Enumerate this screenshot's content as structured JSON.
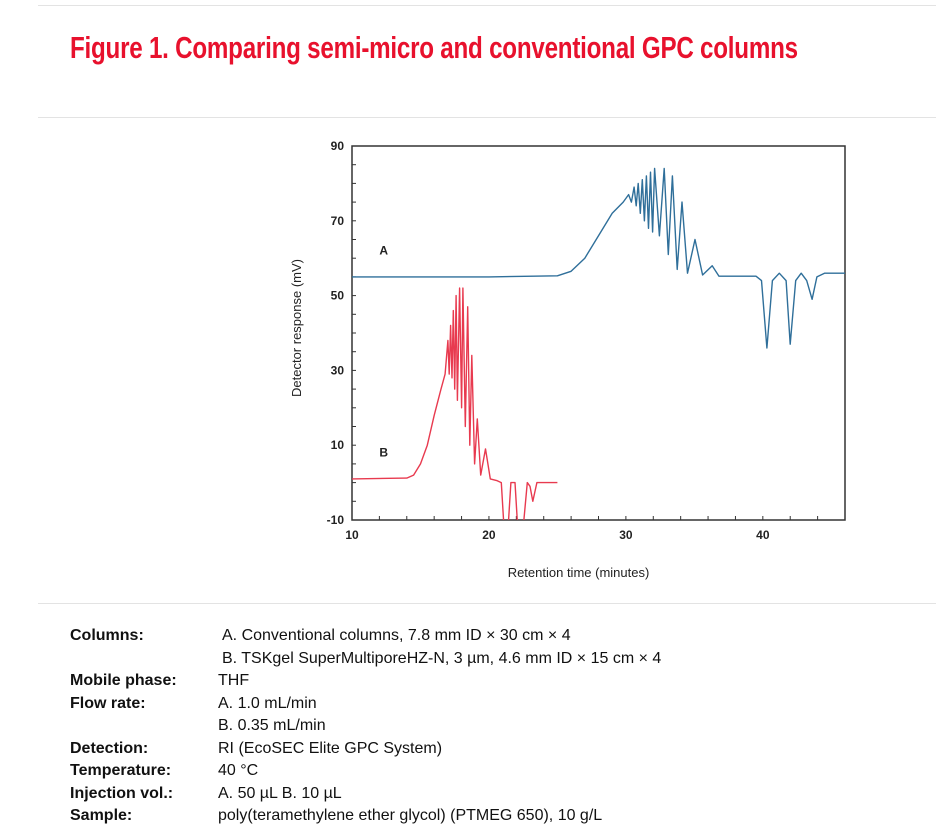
{
  "title": "Figure 1. Comparing semi-micro and conventional GPC columns",
  "chart_data": {
    "type": "line",
    "xlabel": "Retention time (minutes)",
    "ylabel": "Detector response (mV)",
    "xlim": [
      10,
      46
    ],
    "ylim": [
      -10,
      90
    ],
    "xticks": [
      10,
      20,
      30,
      40
    ],
    "yticks": [
      90,
      70,
      50,
      30,
      10,
      -10
    ],
    "grid": false,
    "series": [
      {
        "name": "A",
        "color": "#2f6f9a",
        "label_at": [
          12,
          61
        ],
        "points": [
          [
            10,
            55
          ],
          [
            20,
            55
          ],
          [
            25,
            55.3
          ],
          [
            26,
            56.5
          ],
          [
            27,
            60
          ],
          [
            28,
            66
          ],
          [
            29,
            72
          ],
          [
            29.8,
            75
          ],
          [
            30.2,
            77
          ],
          [
            30.4,
            75
          ],
          [
            30.6,
            79
          ],
          [
            30.75,
            74
          ],
          [
            30.9,
            80
          ],
          [
            31.05,
            72
          ],
          [
            31.2,
            81
          ],
          [
            31.35,
            70
          ],
          [
            31.5,
            82
          ],
          [
            31.65,
            68
          ],
          [
            31.8,
            83
          ],
          [
            31.95,
            67
          ],
          [
            32.1,
            84
          ],
          [
            32.45,
            66
          ],
          [
            32.8,
            84
          ],
          [
            33.1,
            61
          ],
          [
            33.4,
            82
          ],
          [
            33.75,
            57
          ],
          [
            34.1,
            75
          ],
          [
            34.5,
            56
          ],
          [
            35.05,
            65
          ],
          [
            35.6,
            55.5
          ],
          [
            36.3,
            58
          ],
          [
            36.8,
            55.2
          ],
          [
            39.5,
            55.2
          ],
          [
            39.9,
            54
          ],
          [
            40.3,
            36
          ],
          [
            40.7,
            54
          ],
          [
            41.2,
            56
          ],
          [
            41.7,
            54
          ],
          [
            42.0,
            37
          ],
          [
            42.4,
            54
          ],
          [
            42.8,
            56
          ],
          [
            43.2,
            54
          ],
          [
            43.6,
            49
          ],
          [
            43.95,
            55
          ],
          [
            44.5,
            56
          ],
          [
            46,
            56
          ]
        ]
      },
      {
        "name": "B",
        "color": "#e83a4f",
        "label_at": [
          12,
          7
        ],
        "points": [
          [
            10,
            1
          ],
          [
            14,
            1.2
          ],
          [
            14.5,
            2
          ],
          [
            15,
            5
          ],
          [
            15.5,
            10
          ],
          [
            16,
            18
          ],
          [
            16.5,
            25
          ],
          [
            16.8,
            29
          ],
          [
            17.0,
            38
          ],
          [
            17.1,
            29
          ],
          [
            17.2,
            42
          ],
          [
            17.3,
            28
          ],
          [
            17.4,
            46
          ],
          [
            17.5,
            25
          ],
          [
            17.6,
            50
          ],
          [
            17.7,
            22
          ],
          [
            17.86,
            52
          ],
          [
            18.0,
            20
          ],
          [
            18.1,
            52
          ],
          [
            18.27,
            15
          ],
          [
            18.45,
            47
          ],
          [
            18.6,
            10
          ],
          [
            18.75,
            34
          ],
          [
            18.95,
            5
          ],
          [
            19.15,
            17
          ],
          [
            19.4,
            2
          ],
          [
            19.75,
            9
          ],
          [
            20.1,
            1
          ],
          [
            20.6,
            0.5
          ],
          [
            20.9,
            0
          ],
          [
            21.1,
            -12
          ],
          [
            21.4,
            -12
          ],
          [
            21.6,
            0
          ],
          [
            21.9,
            0
          ],
          [
            22.1,
            -12
          ],
          [
            22.5,
            -12
          ],
          [
            22.8,
            0
          ],
          [
            23.0,
            -1
          ],
          [
            23.2,
            -5
          ],
          [
            23.5,
            0
          ],
          [
            25,
            0
          ]
        ]
      }
    ]
  },
  "conditions": [
    {
      "key": "Columns:",
      "values": [
        "A. Conventional columns, 7.8 mm ID × 30 cm × 4",
        "B. TSKgel SuperMultiporeHZ-N, 3 µm, 4.6 mm ID × 15 cm × 4"
      ]
    },
    {
      "key": "Mobile phase:",
      "values": [
        "THF"
      ]
    },
    {
      "key": "Flow rate:",
      "values": [
        "A. 1.0 mL/min",
        "B. 0.35 mL/min"
      ]
    },
    {
      "key": "Detection:",
      "values": [
        "RI (EcoSEC Elite GPC System)"
      ]
    },
    {
      "key": "Temperature:",
      "values": [
        "40 °C"
      ]
    },
    {
      "key": "Injection vol.:",
      "values": [
        "A. 50 µL  B. 10 µL"
      ]
    },
    {
      "key": "Sample:",
      "values": [
        "poly(teramethylene ether glycol) (PTMEG 650), 10 g/L"
      ]
    }
  ]
}
